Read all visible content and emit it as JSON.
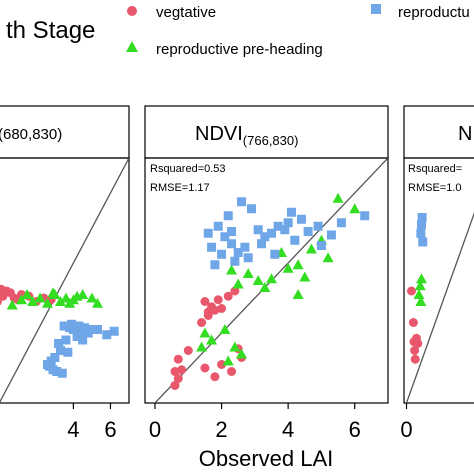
{
  "legend": {
    "title": "th Stage",
    "entries": [
      {
        "label": "vegtative",
        "color": "#e8576b",
        "marker": "circle"
      },
      {
        "label": "reproductive pre-heading",
        "color": "#33dd22",
        "marker": "triangle"
      },
      {
        "label": "reproductu",
        "color": "#6fa6e8",
        "marker": "square"
      }
    ]
  },
  "colors": {
    "vegetative": "#e8576b",
    "pre_heading": "#33dd22",
    "reproductive": "#6fa6e8",
    "one_to_one_line": "#555555"
  },
  "chart_data": [
    {
      "type": "scatter",
      "title": "(680,830)",
      "xlabel": "",
      "xlim": [
        -0.5,
        7
      ],
      "ylim": [
        0,
        7
      ],
      "xticks": [
        4,
        6
      ],
      "stats": [],
      "series": [
        {
          "name": "vegtative",
          "points": [
            [
              -0.3,
              3.15
            ],
            [
              -0.2,
              3.1
            ],
            [
              0,
              3.2
            ],
            [
              0.1,
              3.25
            ],
            [
              0.2,
              3.05
            ],
            [
              0.4,
              3.2
            ],
            [
              0.6,
              3.15
            ],
            [
              0.8,
              3.0
            ],
            [
              1.0,
              2.95
            ],
            [
              1.2,
              3.1
            ],
            [
              1.6,
              3.05
            ],
            [
              2.0,
              2.9
            ],
            [
              2.4,
              3.0
            ],
            [
              2.8,
              2.95
            ],
            [
              -0.1,
              2.9
            ]
          ]
        },
        {
          "name": "reproductive pre-heading",
          "points": [
            [
              0.7,
              2.8
            ],
            [
              1.2,
              2.95
            ],
            [
              1.5,
              3.1
            ],
            [
              1.8,
              2.9
            ],
            [
              2.2,
              3.0
            ],
            [
              2.6,
              2.85
            ],
            [
              3.0,
              3.1
            ],
            [
              3.3,
              2.9
            ],
            [
              3.6,
              3.0
            ],
            [
              4.0,
              2.95
            ],
            [
              4.5,
              3.1
            ],
            [
              5.0,
              3.0
            ],
            [
              5.3,
              2.85
            ],
            [
              3.8,
              2.85
            ],
            [
              2.9,
              3.15
            ],
            [
              4.2,
              3.05
            ]
          ]
        },
        {
          "name": "reproductu",
          "points": [
            [
              3.5,
              2.2
            ],
            [
              3.8,
              2.15
            ],
            [
              4.0,
              2.1
            ],
            [
              4.3,
              2.2
            ],
            [
              4.6,
              2.15
            ],
            [
              5.0,
              2.1
            ],
            [
              4.2,
              1.9
            ],
            [
              3.6,
              1.8
            ],
            [
              3.3,
              1.5
            ],
            [
              3.0,
              1.3
            ],
            [
              2.8,
              1.2
            ],
            [
              2.7,
              1.05
            ],
            [
              2.9,
              0.95
            ],
            [
              3.1,
              0.9
            ],
            [
              3.4,
              0.85
            ],
            [
              3.7,
              1.45
            ],
            [
              4.4,
              1.95
            ],
            [
              4.8,
              2.0
            ],
            [
              5.3,
              2.1
            ],
            [
              5.8,
              1.95
            ],
            [
              6.2,
              2.05
            ],
            [
              3.9,
              2.25
            ],
            [
              4.5,
              1.8
            ],
            [
              2.6,
              1.1
            ],
            [
              3.2,
              1.7
            ]
          ]
        }
      ]
    },
    {
      "type": "scatter",
      "title": "NDVI(766,830)",
      "title_main": "NDVI",
      "title_sub": "(766,830)",
      "xlabel": "Observed LAI",
      "xlim": [
        -0.3,
        7
      ],
      "ylim": [
        0,
        7
      ],
      "xticks": [
        0,
        2,
        4,
        6
      ],
      "stats": [
        "Rsquared=0.53",
        "RMSE=1.17"
      ],
      "series": [
        {
          "name": "vegtative",
          "points": [
            [
              0.6,
              0.9
            ],
            [
              0.7,
              0.7
            ],
            [
              0.8,
              0.95
            ],
            [
              0.6,
              0.5
            ],
            [
              0.7,
              1.25
            ],
            [
              1.0,
              1.5
            ],
            [
              1.5,
              1.0
            ],
            [
              1.8,
              0.75
            ],
            [
              2.0,
              1.1
            ],
            [
              2.3,
              0.9
            ],
            [
              2.6,
              1.3
            ],
            [
              2.5,
              1.55
            ],
            [
              1.4,
              2.3
            ],
            [
              1.6,
              2.5
            ],
            [
              1.8,
              2.65
            ],
            [
              1.7,
              2.75
            ],
            [
              2.0,
              2.7
            ],
            [
              1.5,
              2.9
            ],
            [
              2.2,
              3.05
            ],
            [
              2.4,
              3.2
            ],
            [
              1.9,
              2.95
            ],
            [
              1.6,
              2.6
            ]
          ]
        },
        {
          "name": "reproductive pre-heading",
          "points": [
            [
              1.4,
              1.6
            ],
            [
              1.5,
              2.0
            ],
            [
              1.7,
              1.8
            ],
            [
              2.1,
              2.1
            ],
            [
              2.2,
              1.2
            ],
            [
              2.4,
              1.6
            ],
            [
              2.6,
              1.4
            ],
            [
              2.5,
              3.4
            ],
            [
              2.3,
              3.8
            ],
            [
              3.3,
              3.3
            ],
            [
              3.5,
              3.55
            ],
            [
              4.0,
              3.85
            ],
            [
              4.3,
              3.95
            ],
            [
              4.5,
              3.6
            ],
            [
              4.3,
              3.1
            ],
            [
              4.7,
              4.4
            ],
            [
              5.0,
              4.65
            ],
            [
              5.2,
              4.15
            ],
            [
              5.5,
              5.85
            ],
            [
              6.0,
              5.55
            ],
            [
              3.8,
              4.3
            ],
            [
              2.8,
              3.7
            ],
            [
              3.1,
              3.5
            ]
          ]
        },
        {
          "name": "reproductu",
          "points": [
            [
              1.6,
              4.85
            ],
            [
              1.9,
              5.05
            ],
            [
              2.1,
              4.75
            ],
            [
              2.3,
              4.55
            ],
            [
              2.5,
              4.3
            ],
            [
              2.7,
              4.45
            ],
            [
              2.2,
              5.35
            ],
            [
              2.6,
              5.75
            ],
            [
              2.9,
              5.55
            ],
            [
              3.1,
              4.95
            ],
            [
              3.3,
              4.75
            ],
            [
              3.5,
              4.85
            ],
            [
              3.7,
              5.05
            ],
            [
              3.9,
              4.95
            ],
            [
              4.0,
              5.15
            ],
            [
              4.1,
              5.45
            ],
            [
              4.4,
              5.25
            ],
            [
              4.6,
              4.9
            ],
            [
              4.9,
              5.05
            ],
            [
              5.0,
              4.5
            ],
            [
              5.3,
              4.8
            ],
            [
              5.6,
              5.15
            ],
            [
              6.3,
              5.35
            ],
            [
              1.7,
              4.45
            ],
            [
              2.4,
              4.05
            ],
            [
              1.8,
              3.95
            ],
            [
              2.0,
              4.25
            ],
            [
              2.8,
              4.15
            ],
            [
              3.2,
              4.55
            ],
            [
              3.6,
              4.25
            ],
            [
              4.2,
              4.65
            ],
            [
              2.3,
              4.9
            ]
          ]
        }
      ]
    },
    {
      "type": "scatter",
      "title": "N",
      "xlabel": "",
      "xlim": [
        -0.2,
        7
      ],
      "ylim": [
        0,
        7
      ],
      "xticks": [
        0
      ],
      "stats": [
        "Rsquared=",
        "RMSE=1.0"
      ],
      "series": [
        {
          "name": "vegtative",
          "points": [
            [
              0.4,
              3.2
            ],
            [
              0.6,
              1.75
            ],
            [
              0.8,
              1.85
            ],
            [
              0.65,
              1.5
            ],
            [
              0.7,
              1.25
            ],
            [
              0.9,
              1.7
            ],
            [
              0.55,
              2.3
            ]
          ]
        },
        {
          "name": "reproductive pre-heading",
          "points": [
            [
              1.0,
              3.1
            ],
            [
              1.1,
              3.35
            ],
            [
              1.15,
              2.9
            ],
            [
              1.2,
              3.55
            ]
          ]
        },
        {
          "name": "reproductu",
          "points": [
            [
              1.15,
              4.85
            ],
            [
              1.2,
              5.1
            ],
            [
              1.25,
              5.3
            ],
            [
              1.3,
              4.6
            ]
          ]
        }
      ]
    }
  ]
}
